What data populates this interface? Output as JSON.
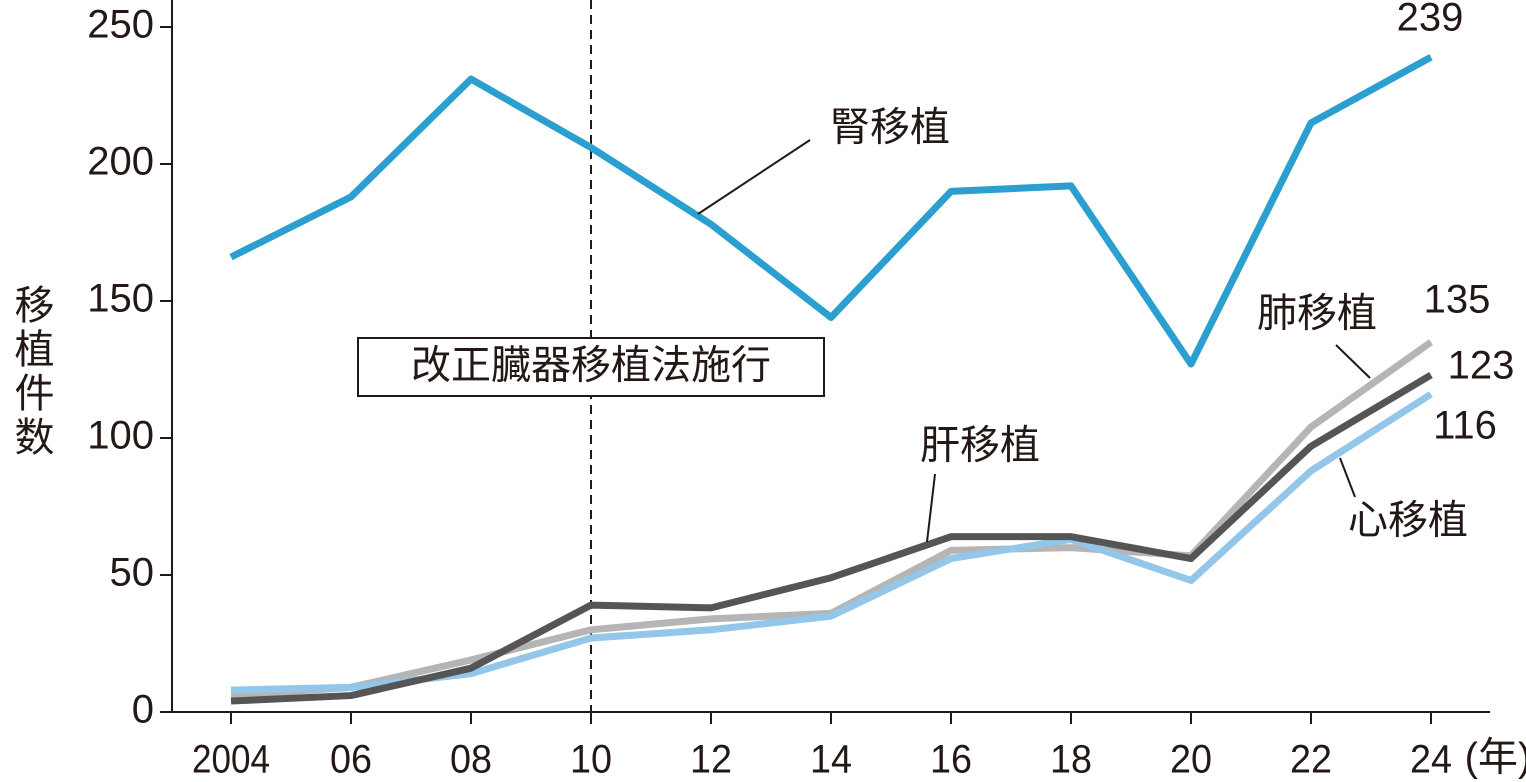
{
  "chart_data": {
    "type": "line",
    "ylabel": "移植件数",
    "xlabel": "(年)",
    "categories": [
      "2004",
      "06",
      "08",
      "10",
      "12",
      "14",
      "16",
      "18",
      "20",
      "22",
      "24"
    ],
    "series": [
      {
        "name": "腎移植",
        "color": "#2a9fd0",
        "values": [
          166,
          188,
          231,
          206,
          178,
          144,
          190,
          192,
          127,
          215,
          239
        ]
      },
      {
        "name": "肺移植",
        "color": "#b5b5b5",
        "values": [
          6,
          9,
          19,
          30,
          34,
          36,
          59,
          60,
          57,
          104,
          135
        ]
      },
      {
        "name": "肝移植",
        "color": "#555555",
        "values": [
          4,
          6,
          16,
          39,
          38,
          49,
          64,
          64,
          56,
          97,
          123
        ]
      },
      {
        "name": "心移植",
        "color": "#93c6e9",
        "values": [
          8,
          9,
          14,
          27,
          30,
          35,
          56,
          63,
          48,
          88,
          116
        ]
      }
    ],
    "annotations": [
      {
        "text": "改正臓器移植法施行",
        "category": "10"
      }
    ],
    "ylim": [
      0,
      255
    ],
    "yticks": [
      0,
      50,
      100,
      150,
      200,
      250
    ],
    "grid": false
  }
}
